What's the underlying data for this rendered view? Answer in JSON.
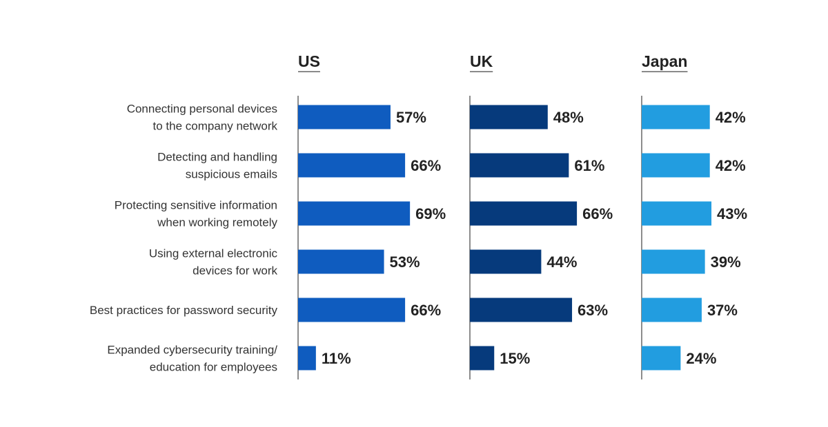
{
  "chart_data": {
    "type": "bar",
    "orientation": "horizontal",
    "categories": [
      [
        "Connecting personal devices",
        "to the company network"
      ],
      [
        "Detecting and handling",
        "suspicious emails"
      ],
      [
        "Protecting sensitive information",
        "when working remotely"
      ],
      [
        "Using external electronic",
        "devices for work"
      ],
      [
        "Best practices for password security"
      ],
      [
        "Expanded cybersecurity training/",
        "education for employees"
      ]
    ],
    "series": [
      {
        "name": "US",
        "values": [
          57,
          66,
          69,
          53,
          66,
          11
        ],
        "color": "#0f5cbf"
      },
      {
        "name": "UK",
        "values": [
          48,
          61,
          66,
          44,
          63,
          15
        ],
        "color": "#063a7c"
      },
      {
        "name": "Japan",
        "values": [
          42,
          42,
          43,
          39,
          37,
          24
        ],
        "color": "#229de0"
      }
    ],
    "value_suffix": "%",
    "xlim": [
      0,
      100
    ],
    "grid": false,
    "title": "",
    "xlabel": "",
    "ylabel": ""
  }
}
